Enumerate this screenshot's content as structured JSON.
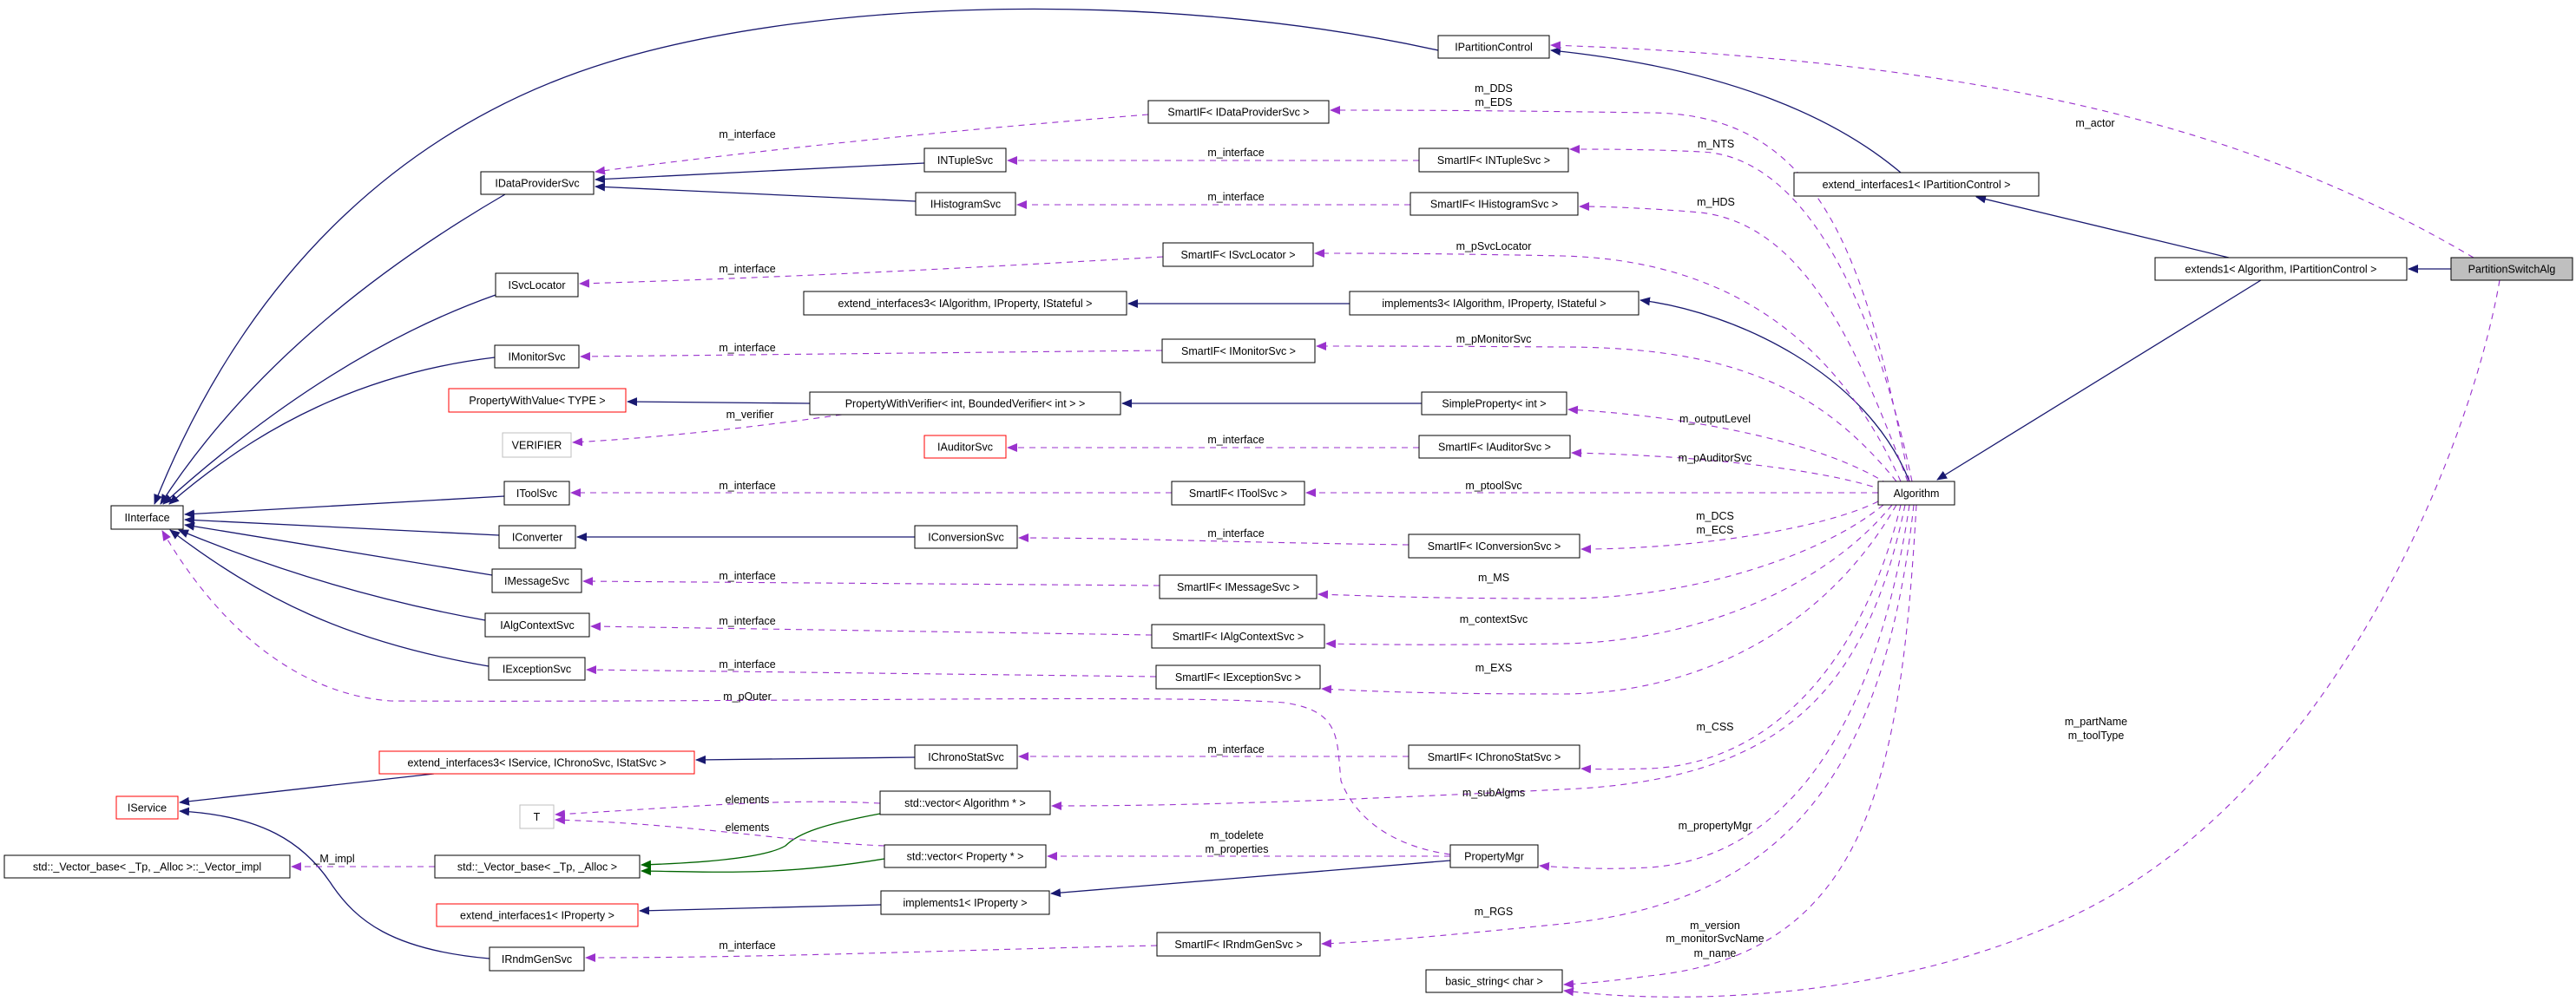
{
  "colors": {
    "inheritance": "#191970",
    "usage": "#9a32cd",
    "template": "#006400",
    "focus_fill": "#bfbfbf",
    "external_border": "#ff0000",
    "undocumented_border": "#bfbfbf",
    "border": "#000000"
  },
  "nodes": [
    {
      "label": "PartitionSwitchAlg",
      "kind": "focus"
    },
    {
      "label": "extends1< Algorithm, IPartitionControl >",
      "kind": "normal"
    },
    {
      "label": "extend_interfaces1< IPartitionControl >",
      "kind": "normal"
    },
    {
      "label": "IPartitionControl",
      "kind": "normal"
    },
    {
      "label": "Algorithm",
      "kind": "normal"
    },
    {
      "label": "implements3< IAlgorithm, IProperty, IStateful >",
      "kind": "normal"
    },
    {
      "label": "extend_interfaces3< IAlgorithm, IProperty, IStateful >",
      "kind": "normal"
    },
    {
      "label": "SmartIF< IDataProviderSvc >",
      "kind": "normal"
    },
    {
      "label": "SmartIF< INTupleSvc >",
      "kind": "normal"
    },
    {
      "label": "SmartIF< IHistogramSvc >",
      "kind": "normal"
    },
    {
      "label": "SmartIF< ISvcLocator >",
      "kind": "normal"
    },
    {
      "label": "SmartIF< IMonitorSvc >",
      "kind": "normal"
    },
    {
      "label": "SimpleProperty< int >",
      "kind": "normal"
    },
    {
      "label": "PropertyWithVerifier< int, BoundedVerifier< int > >",
      "kind": "normal"
    },
    {
      "label": "SmartIF< IAuditorSvc >",
      "kind": "normal"
    },
    {
      "label": "SmartIF< IToolSvc >",
      "kind": "normal"
    },
    {
      "label": "SmartIF< IConversionSvc >",
      "kind": "normal"
    },
    {
      "label": "SmartIF< IMessageSvc >",
      "kind": "normal"
    },
    {
      "label": "SmartIF< IAlgContextSvc >",
      "kind": "normal"
    },
    {
      "label": "SmartIF< IExceptionSvc >",
      "kind": "normal"
    },
    {
      "label": "SmartIF< IChronoStatSvc >",
      "kind": "normal"
    },
    {
      "label": "std::vector< Algorithm * >",
      "kind": "normal"
    },
    {
      "label": "std::vector< Property * >",
      "kind": "normal"
    },
    {
      "label": "PropertyMgr",
      "kind": "normal"
    },
    {
      "label": "implements1< IProperty >",
      "kind": "normal"
    },
    {
      "label": "SmartIF< IRndmGenSvc >",
      "kind": "normal"
    },
    {
      "label": "basic_string< char >",
      "kind": "normal"
    },
    {
      "label": "INTupleSvc",
      "kind": "normal"
    },
    {
      "label": "IHistogramSvc",
      "kind": "normal"
    },
    {
      "label": "IConversionSvc",
      "kind": "normal"
    },
    {
      "label": "IChronoStatSvc",
      "kind": "normal"
    },
    {
      "label": "IAuditorSvc",
      "kind": "external"
    },
    {
      "label": "IDataProviderSvc",
      "kind": "normal"
    },
    {
      "label": "ISvcLocator",
      "kind": "normal"
    },
    {
      "label": "IMonitorSvc",
      "kind": "normal"
    },
    {
      "label": "PropertyWithValue< TYPE >",
      "kind": "external"
    },
    {
      "label": "VERIFIER",
      "kind": "undocumented"
    },
    {
      "label": "IToolSvc",
      "kind": "normal"
    },
    {
      "label": "IConverter",
      "kind": "normal"
    },
    {
      "label": "IMessageSvc",
      "kind": "normal"
    },
    {
      "label": "IAlgContextSvc",
      "kind": "normal"
    },
    {
      "label": "IExceptionSvc",
      "kind": "normal"
    },
    {
      "label": "extend_interfaces3< IService, IChronoSvc, IStatSvc >",
      "kind": "external"
    },
    {
      "label": "T",
      "kind": "undocumented"
    },
    {
      "label": "std::_Vector_base< _Tp, _Alloc >",
      "kind": "normal"
    },
    {
      "label": "extend_interfaces1< IProperty >",
      "kind": "external"
    },
    {
      "label": "IRndmGenSvc",
      "kind": "normal"
    },
    {
      "label": "IInterface",
      "kind": "normal"
    },
    {
      "label": "IService",
      "kind": "external"
    },
    {
      "label": "std::_Vector_base< _Tp, _Alloc >::_Vector_impl",
      "kind": "normal"
    }
  ],
  "edge_labels": [
    "m_actor",
    "m_DDS",
    "m_EDS",
    "m_NTS",
    "m_HDS",
    "m_pSvcLocator",
    "m_pMonitorSvc",
    "m_outputLevel",
    "m_pAuditorSvc",
    "m_ptoolSvc",
    "m_DCS",
    "m_ECS",
    "m_MS",
    "m_contextSvc",
    "m_EXS",
    "m_CSS",
    "m_subAlgms",
    "m_propertyMgr",
    "m_todelete",
    "m_properties",
    "m_RGS",
    "m_version",
    "m_monitorSvcName",
    "m_name",
    "m_partName",
    "m_toolType",
    "m_interface",
    "m_interface",
    "m_interface",
    "m_interface",
    "m_interface",
    "m_interface",
    "m_interface",
    "m_interface",
    "m_interface",
    "m_interface",
    "m_interface",
    "m_interface",
    "m_interface",
    "m_verifier",
    "m_pOuter",
    "elements",
    "elements",
    "_M_impl"
  ]
}
